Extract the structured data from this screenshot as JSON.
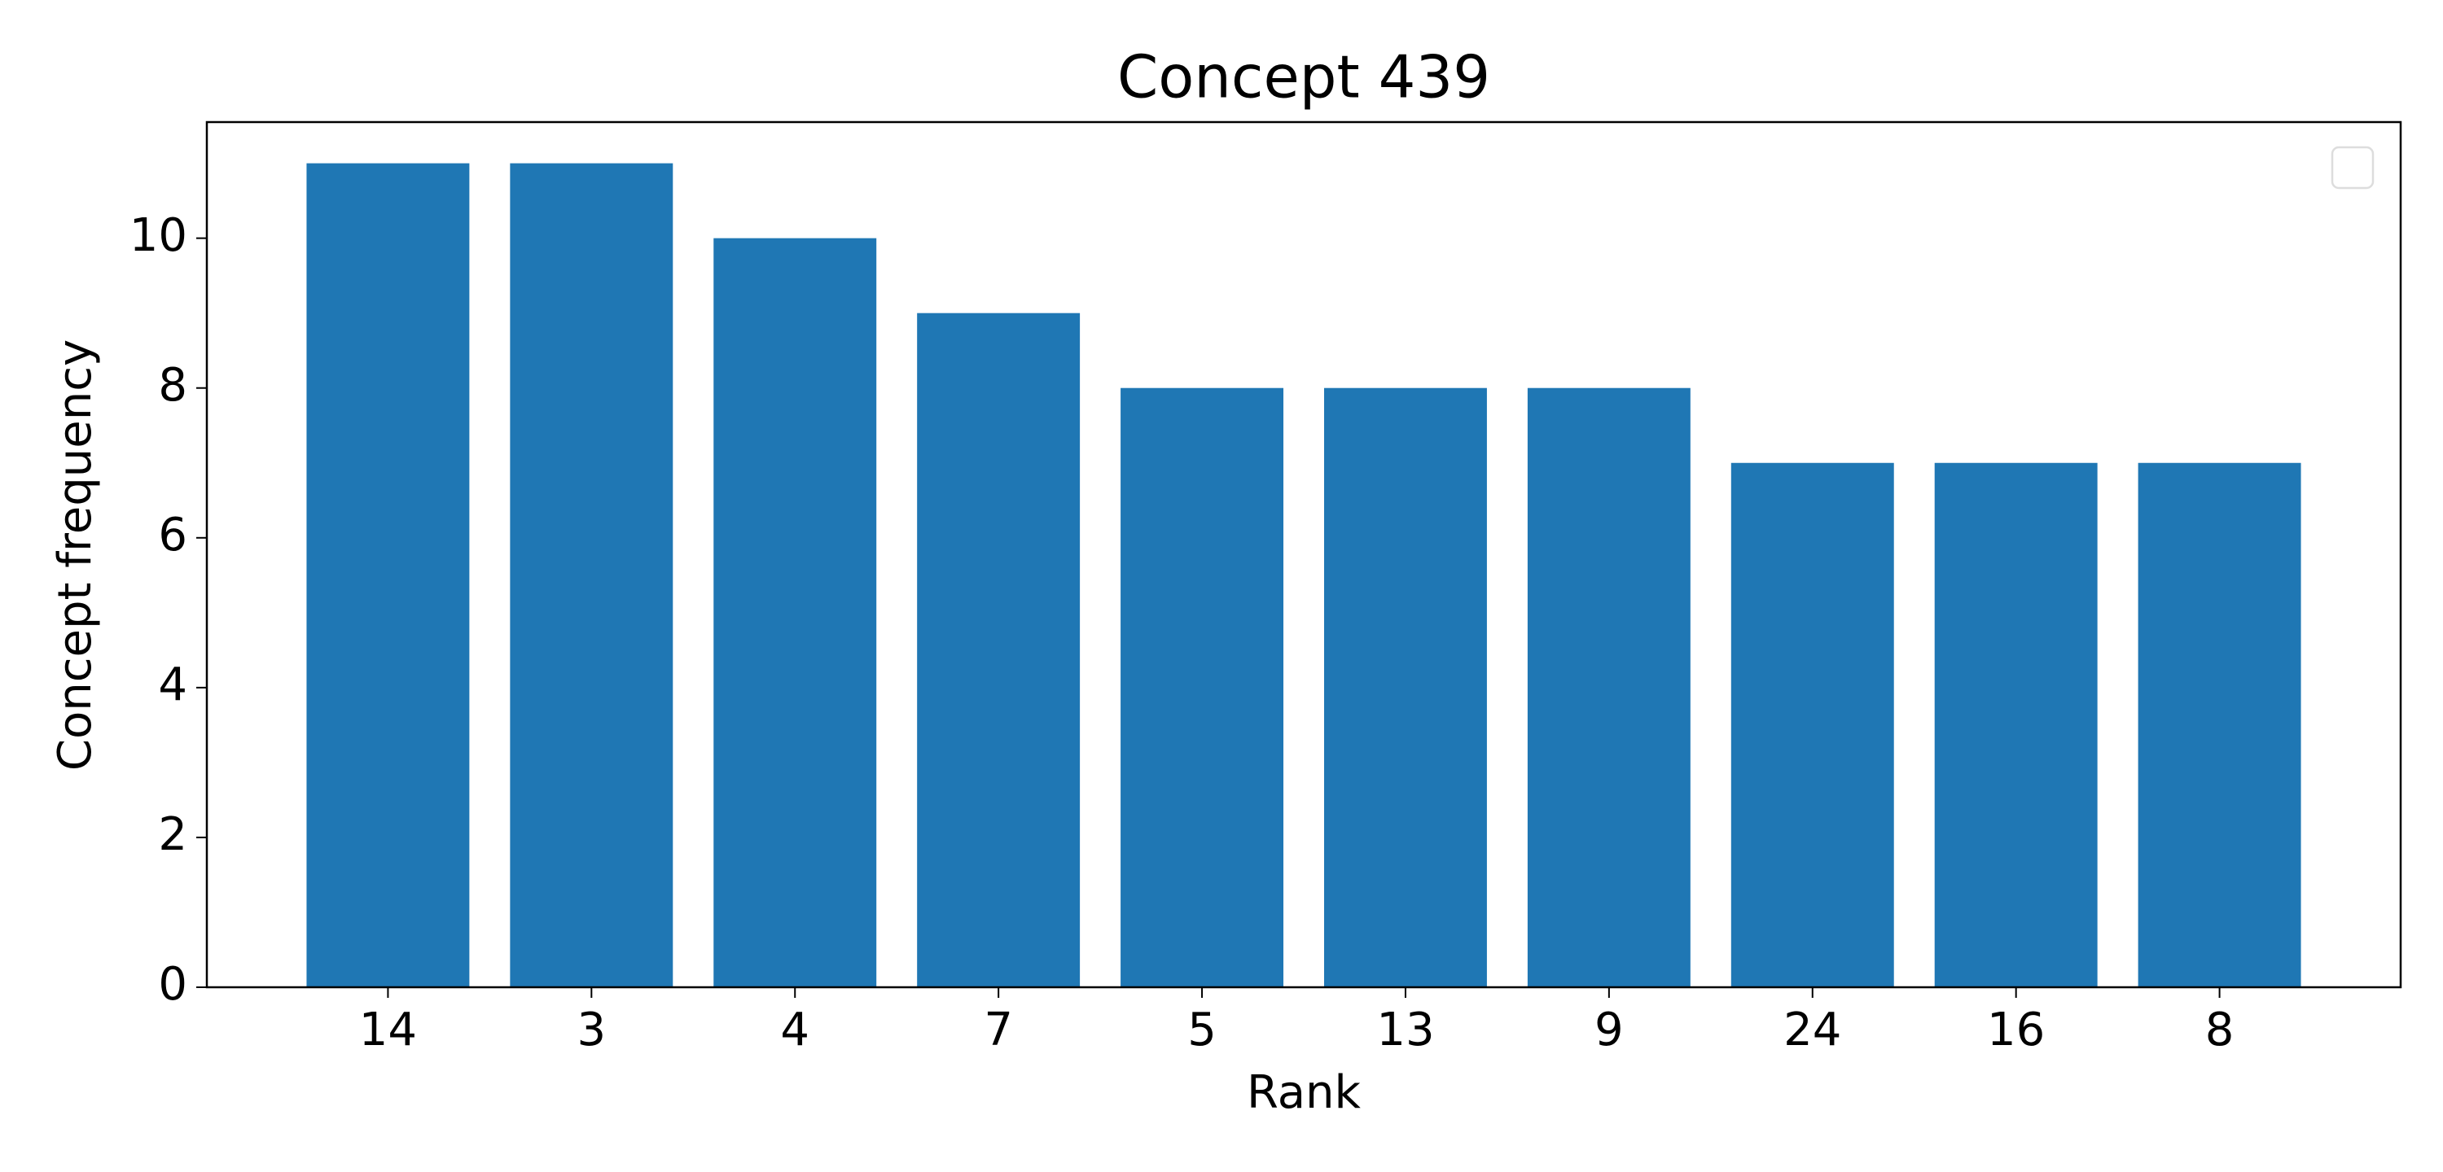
{
  "chart_data": {
    "type": "bar",
    "title": "Concept 439",
    "x_label": "Rank",
    "y_label": "Concept frequency",
    "categories": [
      "14",
      "3",
      "4",
      "7",
      "5",
      "13",
      "9",
      "24",
      "16",
      "8"
    ],
    "values": [
      11,
      11,
      10,
      9,
      8,
      8,
      8,
      7,
      7,
      7
    ],
    "color": "#1f77b4",
    "ylim": [
      0,
      11.55
    ],
    "yticks": [
      0,
      2,
      4,
      6,
      8,
      10
    ],
    "grid": false
  }
}
